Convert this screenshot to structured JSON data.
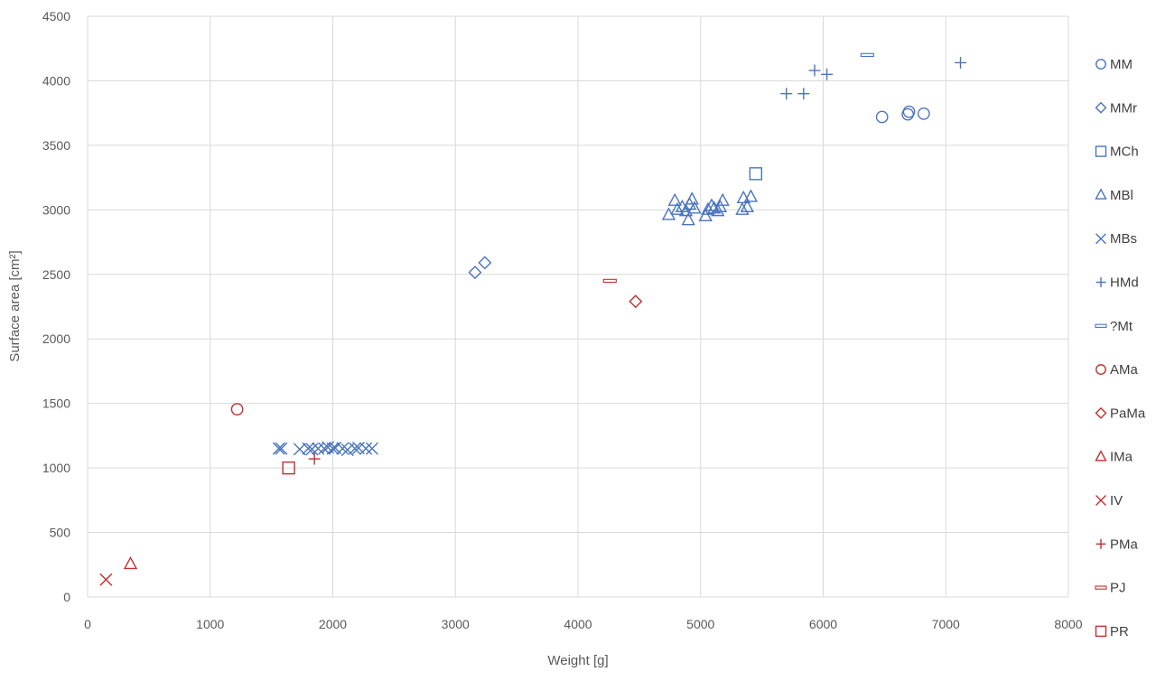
{
  "chart_data": {
    "type": "scatter",
    "xlabel": "Weight [g]",
    "ylabel": "Surface area [cm²]",
    "xlim": [
      0,
      8000
    ],
    "ylim": [
      0,
      4500
    ],
    "x_ticks": [
      "0",
      "1000",
      "2000",
      "3000",
      "4000",
      "5000",
      "6000",
      "7000",
      "8000"
    ],
    "y_ticks": [
      "0",
      "500",
      "1000",
      "1500",
      "2000",
      "2500",
      "3000",
      "3500",
      "4000",
      "4500"
    ],
    "grid": true,
    "legend_position": "right",
    "colors": {
      "blue": "#4a74c0",
      "red": "#c0302f"
    },
    "series": [
      {
        "name": "MM",
        "marker": "circle",
        "color": "#4a74c0",
        "points": [
          [
            6480,
            3720
          ],
          [
            6690,
            3740
          ],
          [
            6700,
            3760
          ],
          [
            6820,
            3745
          ]
        ]
      },
      {
        "name": "MMr",
        "marker": "diamond",
        "color": "#4a74c0",
        "points": [
          [
            3160,
            2515
          ],
          [
            3240,
            2590
          ]
        ]
      },
      {
        "name": "MCh",
        "marker": "square",
        "color": "#4a74c0",
        "points": [
          [
            5450,
            3280
          ]
        ]
      },
      {
        "name": "MBl",
        "marker": "triangle",
        "color": "#4a74c0",
        "points": [
          [
            4740,
            2960
          ],
          [
            4790,
            3070
          ],
          [
            4810,
            3000
          ],
          [
            4850,
            3020
          ],
          [
            4880,
            2990
          ],
          [
            4900,
            2920
          ],
          [
            4910,
            3040
          ],
          [
            4930,
            3080
          ],
          [
            4950,
            3010
          ],
          [
            5040,
            2950
          ],
          [
            5060,
            3000
          ],
          [
            5090,
            3030
          ],
          [
            5110,
            3010
          ],
          [
            5140,
            2990
          ],
          [
            5160,
            3020
          ],
          [
            5180,
            3070
          ],
          [
            5340,
            3000
          ],
          [
            5350,
            3090
          ],
          [
            5380,
            3020
          ],
          [
            5410,
            3100
          ]
        ]
      },
      {
        "name": "MBs",
        "marker": "x",
        "color": "#4a74c0",
        "points": [
          [
            1560,
            1150
          ],
          [
            1580,
            1150
          ],
          [
            1730,
            1145
          ],
          [
            1800,
            1150
          ],
          [
            1830,
            1145
          ],
          [
            1880,
            1150
          ],
          [
            1930,
            1150
          ],
          [
            1960,
            1160
          ],
          [
            2000,
            1150
          ],
          [
            2020,
            1155
          ],
          [
            2080,
            1150
          ],
          [
            2120,
            1140
          ],
          [
            2180,
            1150
          ],
          [
            2210,
            1155
          ],
          [
            2270,
            1150
          ],
          [
            2320,
            1150
          ]
        ]
      },
      {
        "name": "HMd",
        "marker": "plus",
        "color": "#4a74c0",
        "points": [
          [
            5700,
            3900
          ],
          [
            5840,
            3900
          ],
          [
            5930,
            4080
          ],
          [
            6030,
            4050
          ],
          [
            7120,
            4140
          ]
        ]
      },
      {
        "name": "?Mt",
        "marker": "dash",
        "color": "#4a74c0",
        "points": [
          [
            6360,
            4200
          ]
        ]
      },
      {
        "name": "AMa",
        "marker": "circle",
        "color": "#c0302f",
        "points": [
          [
            1220,
            1455
          ]
        ]
      },
      {
        "name": "PaMa",
        "marker": "diamond",
        "color": "#c0302f",
        "points": [
          [
            4470,
            2290
          ]
        ]
      },
      {
        "name": "IMa",
        "marker": "triangle",
        "color": "#c0302f",
        "points": [
          [
            350,
            255
          ]
        ]
      },
      {
        "name": "IV",
        "marker": "x",
        "color": "#c0302f",
        "points": [
          [
            150,
            135
          ]
        ]
      },
      {
        "name": "PMa",
        "marker": "plus",
        "color": "#c0302f",
        "points": [
          [
            1850,
            1070
          ]
        ]
      },
      {
        "name": "PJ",
        "marker": "dash",
        "color": "#c0302f",
        "points": [
          [
            4260,
            2450
          ]
        ]
      },
      {
        "name": "PR",
        "marker": "square",
        "color": "#c0302f",
        "points": [
          [
            1640,
            1000
          ]
        ]
      }
    ]
  }
}
